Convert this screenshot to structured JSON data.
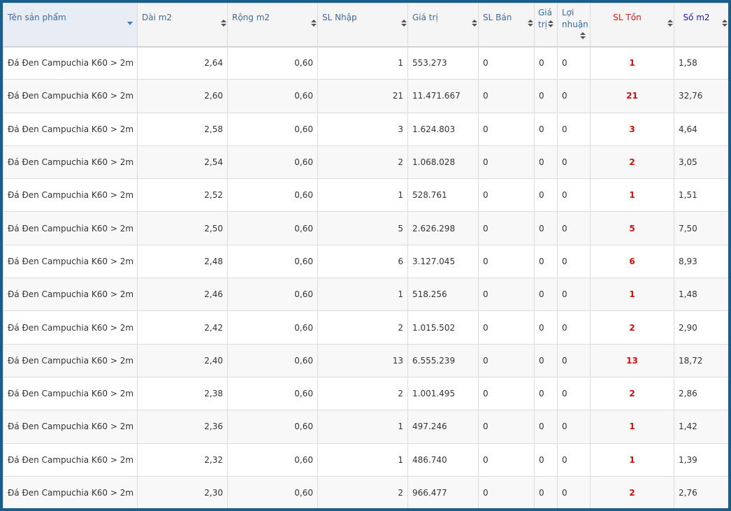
{
  "columns": {
    "ten_san_pham": "Tên sản phẩm",
    "dai": "Dài m2",
    "rong": "Rộng m2",
    "sl_nhap": "SL Nhập",
    "gia_tri": "Giá trị",
    "sl_ban": "SL Bán",
    "gia_tri_ban_1": "Giá",
    "gia_tri_ban_2": "trị",
    "loi_nhuan_1": "Lợi",
    "loi_nhuan_2": "nhuận",
    "sl_ton": "SL Tồn",
    "so_m2": "Số m2"
  },
  "colors": {
    "ton": "#d40d0d",
    "so_m2_header": "#1a1aa8",
    "header_text": "#3d6a9c"
  },
  "rows": [
    {
      "name": "Đá Đen Campuchia K60 > 2m",
      "dai": "2,64",
      "rong": "0,60",
      "sl_nhap": "1",
      "gia_tri": "553.273",
      "sl_ban": "0",
      "gia_tri_ban": "0",
      "loi_nhuan": "0",
      "sl_ton": "1",
      "so_m2": "1,58"
    },
    {
      "name": "Đá Đen Campuchia K60 > 2m",
      "dai": "2,60",
      "rong": "0,60",
      "sl_nhap": "21",
      "gia_tri": "11.471.667",
      "sl_ban": "0",
      "gia_tri_ban": "0",
      "loi_nhuan": "0",
      "sl_ton": "21",
      "so_m2": "32,76"
    },
    {
      "name": "Đá Đen Campuchia K60 > 2m",
      "dai": "2,58",
      "rong": "0,60",
      "sl_nhap": "3",
      "gia_tri": "1.624.803",
      "sl_ban": "0",
      "gia_tri_ban": "0",
      "loi_nhuan": "0",
      "sl_ton": "3",
      "so_m2": "4,64"
    },
    {
      "name": "Đá Đen Campuchia K60 > 2m",
      "dai": "2,54",
      "rong": "0,60",
      "sl_nhap": "2",
      "gia_tri": "1.068.028",
      "sl_ban": "0",
      "gia_tri_ban": "0",
      "loi_nhuan": "0",
      "sl_ton": "2",
      "so_m2": "3,05"
    },
    {
      "name": "Đá Đen Campuchia K60 > 2m",
      "dai": "2,52",
      "rong": "0,60",
      "sl_nhap": "1",
      "gia_tri": "528.761",
      "sl_ban": "0",
      "gia_tri_ban": "0",
      "loi_nhuan": "0",
      "sl_ton": "1",
      "so_m2": "1,51"
    },
    {
      "name": "Đá Đen Campuchia K60 > 2m",
      "dai": "2,50",
      "rong": "0,60",
      "sl_nhap": "5",
      "gia_tri": "2.626.298",
      "sl_ban": "0",
      "gia_tri_ban": "0",
      "loi_nhuan": "0",
      "sl_ton": "5",
      "so_m2": "7,50"
    },
    {
      "name": "Đá Đen Campuchia K60 > 2m",
      "dai": "2,48",
      "rong": "0,60",
      "sl_nhap": "6",
      "gia_tri": "3.127.045",
      "sl_ban": "0",
      "gia_tri_ban": "0",
      "loi_nhuan": "0",
      "sl_ton": "6",
      "so_m2": "8,93"
    },
    {
      "name": "Đá Đen Campuchia K60 > 2m",
      "dai": "2,46",
      "rong": "0,60",
      "sl_nhap": "1",
      "gia_tri": "518.256",
      "sl_ban": "0",
      "gia_tri_ban": "0",
      "loi_nhuan": "0",
      "sl_ton": "1",
      "so_m2": "1,48"
    },
    {
      "name": "Đá Đen Campuchia K60 > 2m",
      "dai": "2,42",
      "rong": "0,60",
      "sl_nhap": "2",
      "gia_tri": "1.015.502",
      "sl_ban": "0",
      "gia_tri_ban": "0",
      "loi_nhuan": "0",
      "sl_ton": "2",
      "so_m2": "2,90"
    },
    {
      "name": "Đá Đen Campuchia K60 > 2m",
      "dai": "2,40",
      "rong": "0,60",
      "sl_nhap": "13",
      "gia_tri": "6.555.239",
      "sl_ban": "0",
      "gia_tri_ban": "0",
      "loi_nhuan": "0",
      "sl_ton": "13",
      "so_m2": "18,72"
    },
    {
      "name": "Đá Đen Campuchia K60 > 2m",
      "dai": "2,38",
      "rong": "0,60",
      "sl_nhap": "2",
      "gia_tri": "1.001.495",
      "sl_ban": "0",
      "gia_tri_ban": "0",
      "loi_nhuan": "0",
      "sl_ton": "2",
      "so_m2": "2,86"
    },
    {
      "name": "Đá Đen Campuchia K60 > 2m",
      "dai": "2,36",
      "rong": "0,60",
      "sl_nhap": "1",
      "gia_tri": "497.246",
      "sl_ban": "0",
      "gia_tri_ban": "0",
      "loi_nhuan": "0",
      "sl_ton": "1",
      "so_m2": "1,42"
    },
    {
      "name": "Đá Đen Campuchia K60 > 2m",
      "dai": "2,32",
      "rong": "0,60",
      "sl_nhap": "1",
      "gia_tri": "486.740",
      "sl_ban": "0",
      "gia_tri_ban": "0",
      "loi_nhuan": "0",
      "sl_ton": "1",
      "so_m2": "1,39"
    },
    {
      "name": "Đá Đen Campuchia K60 > 2m",
      "dai": "2,30",
      "rong": "0,60",
      "sl_nhap": "2",
      "gia_tri": "966.477",
      "sl_ban": "0",
      "gia_tri_ban": "0",
      "loi_nhuan": "0",
      "sl_ton": "2",
      "so_m2": "2,76"
    }
  ]
}
